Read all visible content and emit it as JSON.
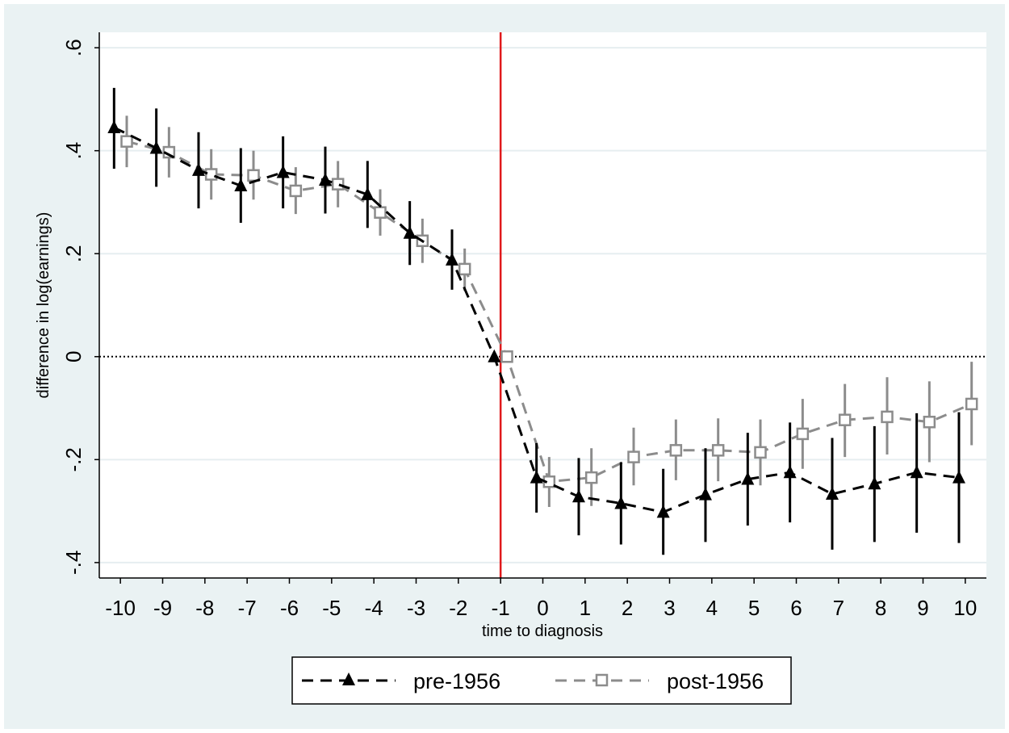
{
  "chart_data": {
    "type": "line",
    "title": "",
    "xlabel": "time to diagnosis",
    "ylabel": "difference in log(earnings)",
    "x": [
      -10,
      -9,
      -8,
      -7,
      -6,
      -5,
      -4,
      -3,
      -2,
      -1,
      0,
      1,
      2,
      3,
      4,
      5,
      6,
      7,
      8,
      9,
      10
    ],
    "x_ticks": [
      "-10",
      "-9",
      "-8",
      "-7",
      "-6",
      "-5",
      "-4",
      "-3",
      "-2",
      "-1",
      "0",
      "1",
      "2",
      "3",
      "4",
      "5",
      "6",
      "7",
      "8",
      "9",
      "10"
    ],
    "y_ticks": [
      {
        "value": 0.6,
        "label": ".6"
      },
      {
        "value": 0.4,
        "label": ".4"
      },
      {
        "value": 0.2,
        "label": ".2"
      },
      {
        "value": 0,
        "label": "0"
      },
      {
        "value": -0.2,
        "label": "-.2"
      },
      {
        "value": -0.4,
        "label": "-.4"
      }
    ],
    "xlim": [
      -10.5,
      10.5
    ],
    "ylim": [
      -0.43,
      0.63
    ],
    "grid": "horizontal",
    "reference_lines": {
      "vertical_x": -1,
      "vertical_color": "#e0191c",
      "horizontal_y": 0,
      "horizontal_style": "dotted"
    },
    "legend_position": "bottom",
    "series": [
      {
        "name": "pre-1956",
        "color": "#000000",
        "marker": "filled-triangle",
        "line_style": "dashed",
        "x_offset": -0.15,
        "values": [
          0.445,
          0.405,
          0.362,
          0.332,
          0.358,
          0.343,
          0.315,
          0.24,
          0.188,
          0.0,
          -0.235,
          -0.272,
          -0.285,
          -0.302,
          -0.268,
          -0.238,
          -0.225,
          -0.267,
          -0.247,
          -0.225,
          -0.235
        ],
        "ci_low": [
          0.365,
          0.33,
          0.288,
          0.26,
          0.288,
          0.278,
          0.25,
          0.178,
          0.13,
          0.0,
          -0.303,
          -0.347,
          -0.365,
          -0.385,
          -0.36,
          -0.328,
          -0.322,
          -0.375,
          -0.36,
          -0.342,
          -0.362
        ],
        "ci_high": [
          0.522,
          0.482,
          0.436,
          0.405,
          0.428,
          0.408,
          0.38,
          0.302,
          0.247,
          0.0,
          -0.168,
          -0.197,
          -0.205,
          -0.218,
          -0.178,
          -0.148,
          -0.128,
          -0.158,
          -0.135,
          -0.11,
          -0.108
        ]
      },
      {
        "name": "post-1956",
        "color": "#8c8c8c",
        "marker": "hollow-square",
        "line_style": "dashed",
        "x_offset": 0.15,
        "values": [
          0.418,
          0.397,
          0.354,
          0.352,
          0.322,
          0.335,
          0.28,
          0.225,
          0.17,
          0.0,
          -0.243,
          -0.235,
          -0.195,
          -0.182,
          -0.182,
          -0.186,
          -0.15,
          -0.123,
          -0.117,
          -0.127,
          -0.092
        ],
        "ci_low": [
          0.368,
          0.348,
          0.305,
          0.305,
          0.277,
          0.29,
          0.235,
          0.182,
          0.128,
          0.0,
          -0.292,
          -0.29,
          -0.25,
          -0.24,
          -0.242,
          -0.25,
          -0.218,
          -0.195,
          -0.19,
          -0.205,
          -0.172
        ],
        "ci_high": [
          0.468,
          0.446,
          0.403,
          0.4,
          0.368,
          0.38,
          0.325,
          0.268,
          0.21,
          0.0,
          -0.195,
          -0.178,
          -0.138,
          -0.122,
          -0.12,
          -0.122,
          -0.082,
          -0.053,
          -0.04,
          -0.048,
          -0.01
        ]
      }
    ]
  }
}
